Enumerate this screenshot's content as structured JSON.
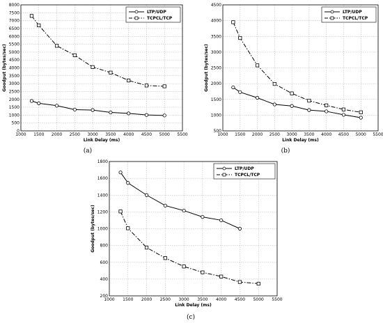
{
  "chart_data": [
    {
      "panel_label": "(a)",
      "type": "line",
      "xlabel": "Link Delay (ms)",
      "ylabel": "Goodput (bytes/sec)",
      "xlim": [
        1000,
        5500
      ],
      "ylim": [
        0,
        8000
      ],
      "xticks": [
        "1000",
        "1500",
        "2000",
        "2500",
        "3000",
        "3500",
        "4000",
        "4500",
        "5000",
        "5500"
      ],
      "yticks": [
        "0",
        "500",
        "1000",
        "1500",
        "2000",
        "2500",
        "3000",
        "3500",
        "4000",
        "4500",
        "5000",
        "5500",
        "6000",
        "6500",
        "7000",
        "7500",
        "8000"
      ],
      "grid": true,
      "legend_position": "top-right",
      "series": [
        {
          "name": "LTP/UDP",
          "marker": "circle",
          "line": "solid",
          "x": [
            1300,
            1500,
            2000,
            2500,
            3000,
            3500,
            4000,
            4500,
            5000
          ],
          "y": [
            1900,
            1750,
            1600,
            1350,
            1320,
            1170,
            1110,
            1010,
            980
          ]
        },
        {
          "name": "TCPCL/TCP",
          "marker": "square",
          "line": "dashdot",
          "x": [
            1300,
            1500,
            2000,
            2500,
            3000,
            3500,
            4000,
            4500,
            5000
          ],
          "y": [
            7300,
            6700,
            5400,
            4800,
            4050,
            3700,
            3200,
            2880,
            2830
          ]
        }
      ]
    },
    {
      "panel_label": "(b)",
      "type": "line",
      "xlabel": "Link Delay (ms)",
      "ylabel": "Goodput (bytes/sec)",
      "xlim": [
        1000,
        5500
      ],
      "ylim": [
        500,
        4500
      ],
      "xticks": [
        "1000",
        "1500",
        "2000",
        "2500",
        "3000",
        "3500",
        "4000",
        "4500",
        "5000",
        "5500"
      ],
      "yticks": [
        "500",
        "1000",
        "1500",
        "2000",
        "2500",
        "3000",
        "3500",
        "4000",
        "4500"
      ],
      "grid": true,
      "legend_position": "top-right",
      "series": [
        {
          "name": "LTP/UDP",
          "marker": "circle",
          "line": "solid",
          "x": [
            1300,
            1500,
            2000,
            2500,
            3000,
            3500,
            4000,
            4500,
            5000
          ],
          "y": [
            1880,
            1730,
            1550,
            1340,
            1290,
            1160,
            1120,
            1010,
            920
          ]
        },
        {
          "name": "TCPCL/TCP",
          "marker": "square",
          "line": "dashdot",
          "x": [
            1300,
            1500,
            2000,
            2500,
            3000,
            3500,
            4000,
            4500,
            5000
          ],
          "y": [
            3950,
            3450,
            2580,
            1990,
            1690,
            1460,
            1310,
            1180,
            1090
          ]
        }
      ]
    },
    {
      "panel_label": "(c)",
      "type": "line",
      "xlabel": "Link Delay (ms)",
      "ylabel": "Goodput (bytes/sec)",
      "xlim": [
        1000,
        5500
      ],
      "ylim": [
        200,
        1800
      ],
      "xticks": [
        "1000",
        "1500",
        "2000",
        "2500",
        "3000",
        "3500",
        "4000",
        "4500",
        "5000",
        "5500"
      ],
      "yticks": [
        "200",
        "400",
        "600",
        "800",
        "1000",
        "1200",
        "1400",
        "1600",
        "1800"
      ],
      "grid": true,
      "legend_position": "top-right",
      "series": [
        {
          "name": "LTP/UDP",
          "marker": "circle",
          "line": "solid",
          "x": [
            1300,
            1500,
            2000,
            2500,
            3000,
            3500,
            4000,
            4500
          ],
          "y": [
            1670,
            1545,
            1400,
            1275,
            1215,
            1140,
            1100,
            1000
          ]
        },
        {
          "name": "TCPCL/TCP",
          "marker": "square",
          "line": "dashdot",
          "x": [
            1300,
            1500,
            2000,
            2500,
            3000,
            3500,
            4000,
            4500,
            5000
          ],
          "y": [
            1205,
            1005,
            775,
            650,
            550,
            480,
            430,
            365,
            345
          ]
        }
      ]
    }
  ]
}
